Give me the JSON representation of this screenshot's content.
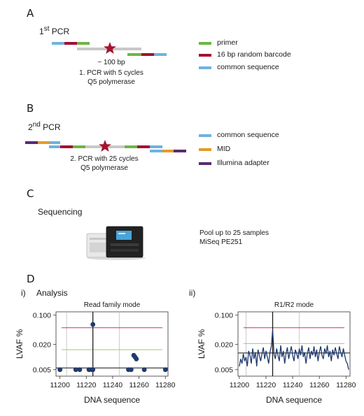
{
  "colors": {
    "primer": "#6cb645",
    "barcode": "#a50d33",
    "common": "#6fb2e0",
    "mid": "#e59b25",
    "illumina": "#5b2a6f",
    "template": "#c8c8c8",
    "star": "#a3152e",
    "navy": "#1f3a6e",
    "red_line": "#d92a5a",
    "green_line": "#9acb6e"
  },
  "panelA": {
    "letter": "A",
    "title_main": "1",
    "title_sup": "st",
    "title_rest": " PCR",
    "note_size": "~ 100 bp",
    "note_line1": "1. PCR with 5 cycles",
    "note_line2": "Q5 polymerase",
    "legend": [
      {
        "label": "primer",
        "color": "primer"
      },
      {
        "label": "16 bp random barcode",
        "color": "barcode"
      },
      {
        "label": "common sequence",
        "color": "common"
      }
    ]
  },
  "panelB": {
    "letter": "B",
    "title_main": "2",
    "title_sup": "nd",
    "title_rest": " PCR",
    "note_line1": "2. PCR with 25 cycles",
    "note_line2": "Q5 polymerase",
    "legend": [
      {
        "label": "common sequence",
        "color": "common"
      },
      {
        "label": "MID",
        "color": "mid"
      },
      {
        "label": "Illumina adapter",
        "color": "illumina"
      }
    ]
  },
  "panelC": {
    "letter": "C",
    "title": "Sequencing",
    "note_line1": "Pool up to 25 samples",
    "note_line2": "MiSeq PE251"
  },
  "panelD": {
    "letter": "D",
    "sub_i": "i)",
    "sub_ii": "ii)",
    "analysis_title": "Analysis"
  },
  "chart_data": [
    {
      "type": "scatter",
      "title": "Read family mode",
      "xlabel": "DNA sequence",
      "ylabel": "LVAF %",
      "y_scale": "log",
      "xlim": [
        11197,
        11282
      ],
      "ylim": [
        0.0035,
        0.12
      ],
      "x_ticks": [
        11200,
        11220,
        11240,
        11260,
        11280
      ],
      "x_tick_labels": [
        "11200",
        "11220",
        "11240",
        "11260",
        "11280"
      ],
      "y_ticks": [
        0.005,
        0.02,
        0.1
      ],
      "y_tick_labels": [
        "0.005",
        "0.020",
        "0.100"
      ],
      "ref_lines": {
        "red": 0.05,
        "green": 0.015,
        "black": 0.0055
      },
      "vlines": {
        "black": 11225,
        "gray": [
          11205,
          11245
        ]
      },
      "points": {
        "x": [
          11200,
          11212,
          11215,
          11222,
          11224,
          11225,
          11225,
          11252,
          11254,
          11256,
          11257,
          11258,
          11264,
          11280
        ],
        "y": [
          0.005,
          0.005,
          0.005,
          0.005,
          0.005,
          0.005,
          0.06,
          0.005,
          0.005,
          0.011,
          0.01,
          0.009,
          0.005,
          0.005
        ]
      }
    },
    {
      "type": "line",
      "title": "R1/R2 mode",
      "xlabel": "DNA sequence",
      "ylabel": "LVAF %",
      "y_scale": "log",
      "xlim": [
        11199,
        11283
      ],
      "ylim": [
        0.0035,
        0.12
      ],
      "x_ticks": [
        11200,
        11220,
        11240,
        11260,
        11280
      ],
      "x_tick_labels": [
        "11200",
        "11220",
        "11240",
        "11260",
        "11280"
      ],
      "y_ticks": [
        0.005,
        0.02,
        0.1
      ],
      "y_tick_labels": [
        "0.005",
        "0.020",
        "0.100"
      ],
      "ref_lines": {
        "red": 0.05,
        "green": 0.021,
        "black": 0.0125
      },
      "vlines": {
        "black": 11225,
        "gray": [
          11205,
          11245
        ]
      },
      "series": [
        {
          "x": [
            11200,
            11201,
            11202,
            11203,
            11204,
            11205,
            11206,
            11207,
            11208,
            11209,
            11210,
            11211,
            11212,
            11213,
            11214,
            11215,
            11216,
            11217,
            11218,
            11219,
            11220,
            11221,
            11222,
            11223,
            11224,
            11225,
            11226,
            11227,
            11228,
            11229,
            11230,
            11231,
            11232,
            11233,
            11234,
            11235,
            11236,
            11237,
            11238,
            11239,
            11240,
            11241,
            11242,
            11243,
            11244,
            11245,
            11246,
            11247,
            11248,
            11249,
            11250,
            11251,
            11252,
            11253,
            11254,
            11255,
            11256,
            11257,
            11258,
            11259,
            11260,
            11261,
            11262,
            11263,
            11264,
            11265,
            11266,
            11267,
            11268,
            11269,
            11270,
            11271,
            11272,
            11273,
            11274,
            11275,
            11276,
            11277,
            11278,
            11279,
            11280,
            11281,
            11282
          ],
          "y": [
            0.006,
            0.009,
            0.007,
            0.012,
            0.008,
            0.01,
            0.006,
            0.014,
            0.011,
            0.007,
            0.016,
            0.009,
            0.013,
            0.006,
            0.015,
            0.011,
            0.008,
            0.012,
            0.017,
            0.009,
            0.014,
            0.01,
            0.007,
            0.013,
            0.018,
            0.045,
            0.012,
            0.009,
            0.016,
            0.011,
            0.008,
            0.019,
            0.01,
            0.014,
            0.007,
            0.012,
            0.017,
            0.009,
            0.013,
            0.018,
            0.011,
            0.008,
            0.015,
            0.012,
            0.009,
            0.016,
            0.011,
            0.019,
            0.01,
            0.013,
            0.007,
            0.012,
            0.017,
            0.009,
            0.014,
            0.011,
            0.018,
            0.01,
            0.015,
            0.008,
            0.013,
            0.018,
            0.011,
            0.009,
            0.016,
            0.012,
            0.019,
            0.01,
            0.014,
            0.008,
            0.015,
            0.011,
            0.017,
            0.012,
            0.009,
            0.018,
            0.013,
            0.01,
            0.016,
            0.011,
            0.008,
            0.007,
            0.005
          ]
        }
      ]
    }
  ]
}
